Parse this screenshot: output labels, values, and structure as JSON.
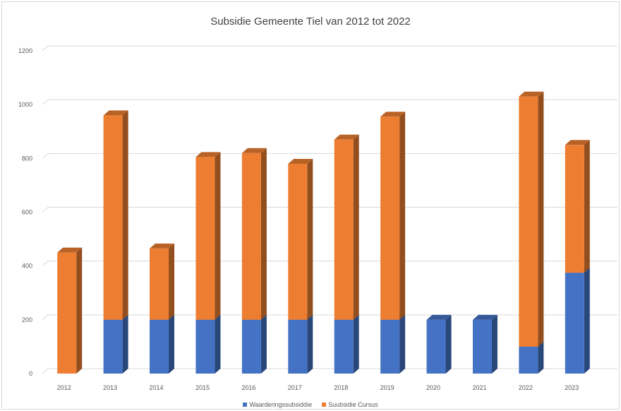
{
  "chart_data": {
    "type": "bar",
    "stacked": true,
    "three_d": true,
    "title": "Subsidie Gemeente Tiel van 2012 tot 2022",
    "categories": [
      "2012",
      "2013",
      "2014",
      "2015",
      "2016",
      "2017",
      "2018",
      "2019",
      "2020",
      "2021",
      "2022",
      "2023"
    ],
    "series": [
      {
        "name": "Waarderingssubsiddie",
        "color": "#4472c4",
        "values": [
          0,
          200,
          200,
          200,
          200,
          200,
          200,
          200,
          200,
          200,
          100,
          375
        ]
      },
      {
        "name": "Suubsidie Cursus",
        "color": "#ed7d31",
        "values": [
          450,
          760,
          265,
          605,
          620,
          580,
          670,
          755,
          0,
          0,
          930,
          475
        ]
      }
    ],
    "ylim": [
      0,
      1200
    ],
    "yticks": [
      "0",
      "200",
      "400",
      "600",
      "800",
      "1000",
      "1200"
    ],
    "grid": true,
    "legend_position": "bottom"
  }
}
